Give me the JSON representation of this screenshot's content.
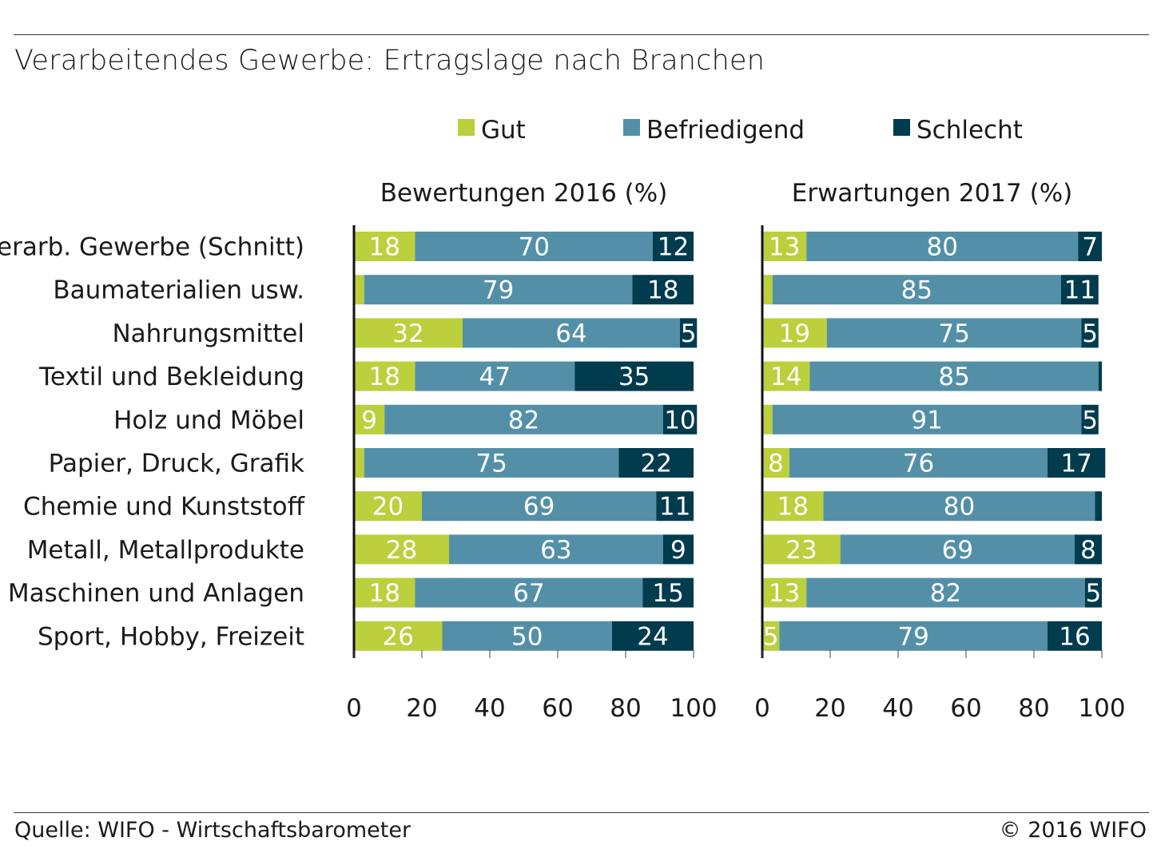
{
  "title": "Verarbeitendes Gewerbe: Ertragslage nach Branchen",
  "source": "Quelle: WIFO - Wirtschaftsbarometer",
  "copyright": "© 2016 WIFO",
  "colors": {
    "gut": "#bccf3c",
    "befriedigend": "#5390a8",
    "schlecht": "#003b4e"
  },
  "chart_data": {
    "type": "bar",
    "stacked": true,
    "orientation": "horizontal",
    "legend": {
      "position": "top",
      "entries": [
        "Gut",
        "Befriedigend",
        "Schlecht"
      ]
    },
    "categories": [
      "Verarb. Gewerbe (Schnitt)",
      "Baumaterialien usw.",
      "Nahrungsmittel",
      "Textil und Bekleidung",
      "Holz und Möbel",
      "Papier, Druck, Grafik",
      "Chemie und Kunststoff",
      "Metall, Metallprodukte",
      "Maschinen und Anlagen",
      "Sport, Hobby, Freizeit"
    ],
    "xlim": [
      0,
      100
    ],
    "xticks": [
      0,
      20,
      40,
      60,
      80,
      100
    ],
    "panels": [
      {
        "title": "Bewertungen 2016 (%)",
        "series": [
          {
            "name": "Gut",
            "values": [
              18,
              3,
              32,
              18,
              9,
              3,
              20,
              28,
              18,
              26
            ],
            "labels": [
              "18",
              "",
              "32",
              "18",
              "9",
              "",
              "20",
              "28",
              "18",
              "26"
            ]
          },
          {
            "name": "Befriedigend",
            "values": [
              70,
              79,
              64,
              47,
              82,
              75,
              69,
              63,
              67,
              50
            ],
            "labels": [
              "70",
              "79",
              "64",
              "47",
              "82",
              "75",
              "69",
              "63",
              "67",
              "50"
            ]
          },
          {
            "name": "Schlecht",
            "values": [
              12,
              18,
              5,
              35,
              10,
              22,
              11,
              9,
              15,
              24
            ],
            "labels": [
              "12",
              "18",
              "5",
              "35",
              "10",
              "22",
              "11",
              "9",
              "15",
              "24"
            ]
          }
        ]
      },
      {
        "title": "Erwartungen 2017 (%)",
        "series": [
          {
            "name": "Gut",
            "values": [
              13,
              3,
              19,
              14,
              3,
              8,
              18,
              23,
              13,
              5
            ],
            "labels": [
              "13",
              "",
              "19",
              "14",
              "",
              "8",
              "18",
              "23",
              "13",
              "5"
            ]
          },
          {
            "name": "Befriedigend",
            "values": [
              80,
              85,
              75,
              85,
              91,
              76,
              80,
              69,
              82,
              79
            ],
            "labels": [
              "80",
              "85",
              "75",
              "85",
              "91",
              "76",
              "80",
              "69",
              "82",
              "79"
            ]
          },
          {
            "name": "Schlecht",
            "values": [
              7,
              11,
              5,
              1,
              5,
              17,
              2,
              8,
              5,
              16
            ],
            "labels": [
              "7",
              "11",
              "5",
              "",
              "5",
              "17",
              "",
              "8",
              "5",
              "16"
            ]
          }
        ]
      }
    ]
  }
}
